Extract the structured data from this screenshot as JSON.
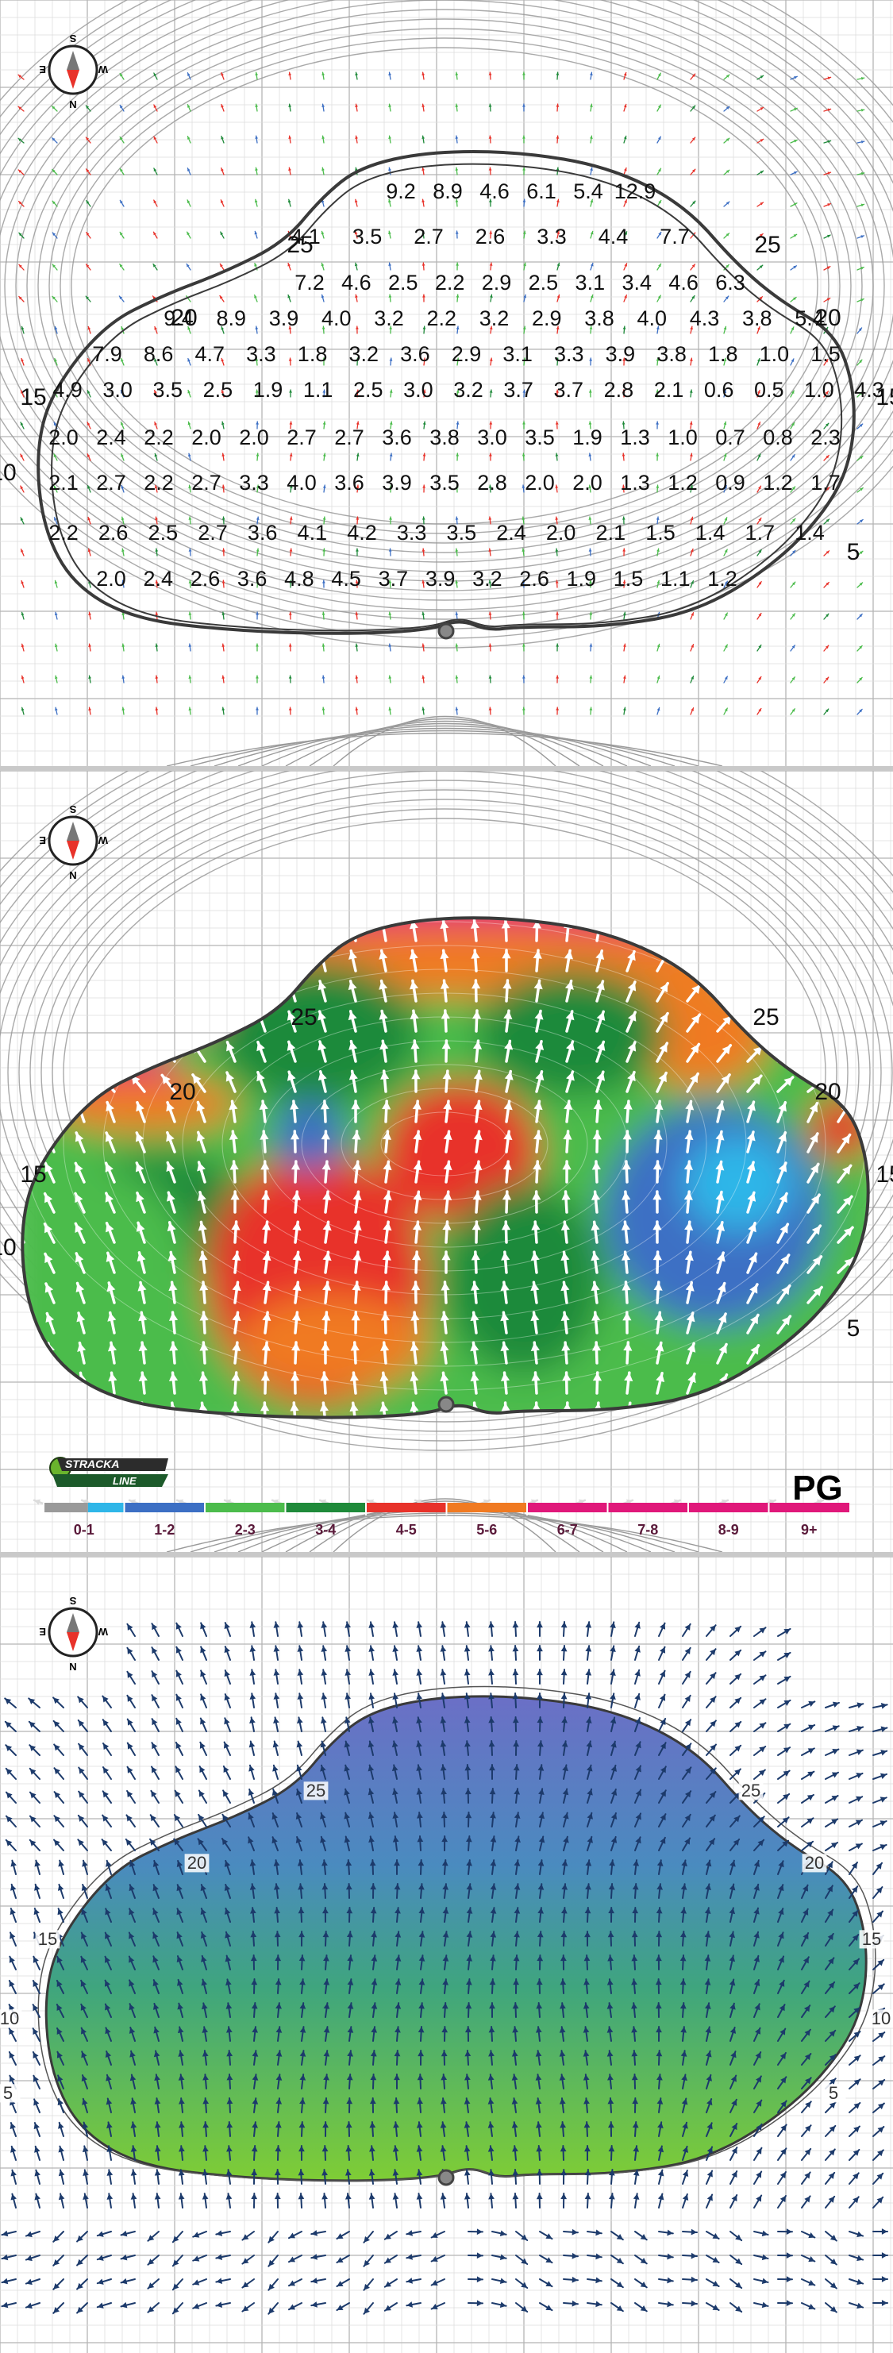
{
  "compass": {
    "top": "S",
    "right": "W",
    "bottom": "N",
    "left": "E"
  },
  "panel1": {
    "edge_labels": [
      {
        "text": "25",
        "id": "left-25"
      },
      {
        "text": "25",
        "id": "right-25"
      },
      {
        "text": "20",
        "id": "left-20"
      },
      {
        "text": "20",
        "id": "right-20"
      },
      {
        "text": "15",
        "id": "left-15"
      },
      {
        "text": "15",
        "id": "right-15"
      },
      {
        "text": "10",
        "id": "left-10"
      },
      {
        "text": "5",
        "id": "right-5"
      }
    ],
    "slope_rows": [
      [
        "9.2",
        "8.9",
        "4.6",
        "6.1",
        "5.4",
        "12.9"
      ],
      [
        "4.1",
        "3.5",
        "2.7",
        "2.6",
        "3.3",
        "4.4",
        "7.7"
      ],
      [
        "7.2",
        "4.6",
        "2.5",
        "2.2",
        "2.9",
        "2.5",
        "3.1",
        "3.4",
        "4.6",
        "6.3"
      ],
      [
        "9.4",
        "8.9",
        "3.9",
        "4.0",
        "3.2",
        "2.2",
        "3.2",
        "2.9",
        "3.8",
        "4.0",
        "4.3",
        "3.8",
        "5.4"
      ],
      [
        "7.9",
        "8.6",
        "4.7",
        "3.3",
        "1.8",
        "3.2",
        "3.6",
        "2.9",
        "3.1",
        "3.3",
        "3.9",
        "3.8",
        "1.8",
        "1.0",
        "1.5"
      ],
      [
        "4.9",
        "3.0",
        "3.5",
        "2.5",
        "1.9",
        "1.1",
        "2.5",
        "3.0",
        "3.2",
        "3.7",
        "3.7",
        "2.8",
        "2.1",
        "0.6",
        "0.5",
        "1.0",
        "4.3"
      ],
      [
        "2.0",
        "2.4",
        "2.2",
        "2.0",
        "2.0",
        "2.7",
        "2.7",
        "3.6",
        "3.8",
        "3.0",
        "3.5",
        "1.9",
        "1.3",
        "1.0",
        "0.7",
        "0.8",
        "2.3"
      ],
      [
        "2.1",
        "2.7",
        "2.2",
        "2.7",
        "3.3",
        "4.0",
        "3.6",
        "3.9",
        "3.5",
        "2.8",
        "2.0",
        "2.0",
        "1.3",
        "1.2",
        "0.9",
        "1.2",
        "1.7"
      ],
      [
        "2.2",
        "2.6",
        "2.5",
        "2.7",
        "3.6",
        "4.1",
        "4.2",
        "3.3",
        "3.5",
        "2.4",
        "2.0",
        "2.1",
        "1.5",
        "1.4",
        "1.7",
        "1.4"
      ],
      [
        "2.0",
        "2.4",
        "2.6",
        "3.6",
        "4.8",
        "4.5",
        "3.7",
        "3.9",
        "3.2",
        "2.6",
        "1.9",
        "1.5",
        "1.1",
        "1.2"
      ]
    ]
  },
  "panel2": {
    "edge_labels": [
      {
        "text": "25",
        "id": "left-25"
      },
      {
        "text": "25",
        "id": "right-25"
      },
      {
        "text": "20",
        "id": "left-20"
      },
      {
        "text": "20",
        "id": "right-20"
      },
      {
        "text": "15",
        "id": "left-15"
      },
      {
        "text": "15",
        "id": "right-15"
      },
      {
        "text": "10",
        "id": "left-10"
      },
      {
        "text": "5",
        "id": "right-5"
      }
    ],
    "brand_logo_text": "STRACKA LINE",
    "badge": "PG",
    "legend": [
      {
        "label": "0-1",
        "colors": [
          "#9a9a9a",
          "#2fb6e8"
        ]
      },
      {
        "label": "1-2",
        "colors": [
          "#3c6fc4",
          "#3c6fc4"
        ]
      },
      {
        "label": "2-3",
        "colors": [
          "#4cbc4c",
          "#4cbc4c"
        ]
      },
      {
        "label": "3-4",
        "colors": [
          "#1f8a3a",
          "#1f8a3a"
        ]
      },
      {
        "label": "4-5",
        "colors": [
          "#e8322a",
          "#e8322a"
        ]
      },
      {
        "label": "5-6",
        "colors": [
          "#f07a22",
          "#f07a22"
        ]
      },
      {
        "label": "6-7",
        "colors": [
          "#e0187a",
          "#e0187a"
        ]
      },
      {
        "label": "7-8",
        "colors": [
          "#e0187a",
          "#e0187a"
        ]
      },
      {
        "label": "8-9",
        "colors": [
          "#e0187a",
          "#e0187a"
        ]
      },
      {
        "label": "9+",
        "colors": [
          "#e0187a",
          "#e0187a"
        ]
      }
    ]
  },
  "panel3": {
    "edge_labels": [
      {
        "text": "25",
        "id": "left-25"
      },
      {
        "text": "25",
        "id": "right-25"
      },
      {
        "text": "20",
        "id": "left-20"
      },
      {
        "text": "20",
        "id": "right-20"
      },
      {
        "text": "15",
        "id": "left-15"
      },
      {
        "text": "15",
        "id": "right-15"
      },
      {
        "text": "10",
        "id": "left-10"
      },
      {
        "text": "10",
        "id": "right-10"
      },
      {
        "text": "5",
        "id": "left-5"
      },
      {
        "text": "5",
        "id": "right-5"
      }
    ]
  },
  "colors": {
    "grid": "#c8c8c8",
    "outline": "#3a3a3a",
    "contour": "#9a9a9a",
    "arrow_navy": "#1c3a6b",
    "accent_red": "#e8322a",
    "accent_pink": "#e0187a"
  }
}
